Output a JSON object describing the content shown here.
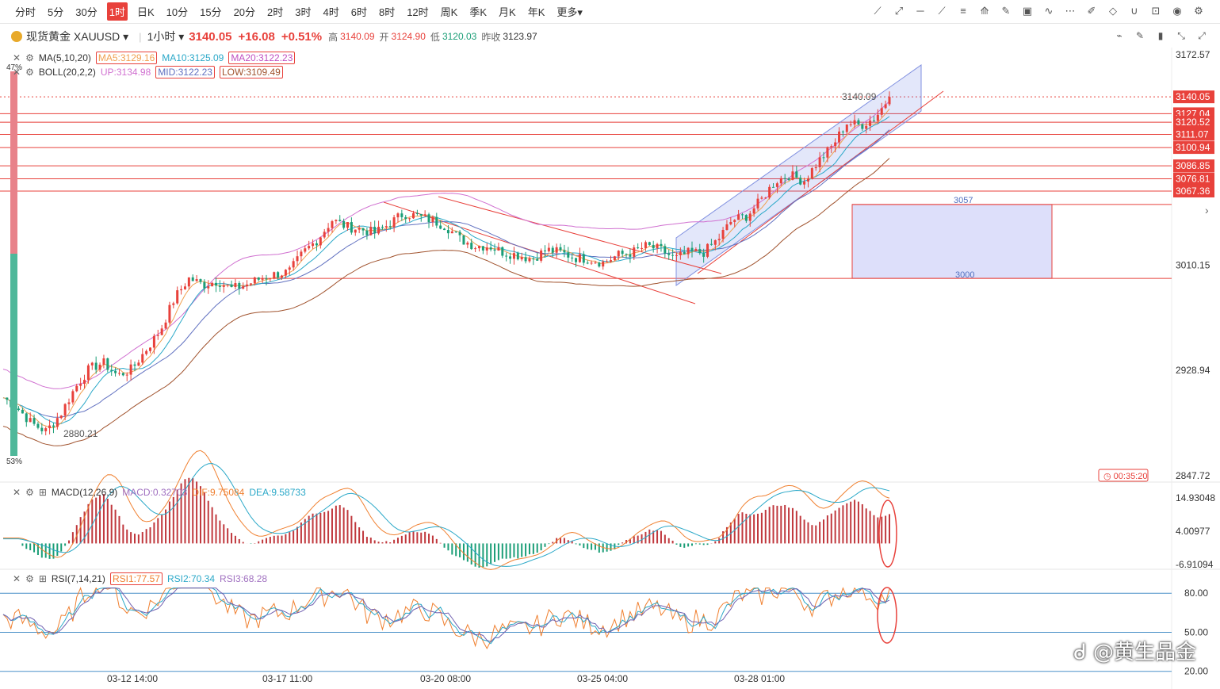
{
  "timeframes": [
    "分时",
    "5分",
    "30分",
    "1时",
    "日K",
    "10分",
    "15分",
    "20分",
    "2时",
    "3时",
    "4时",
    "6时",
    "8时",
    "12时",
    "周K",
    "季K",
    "月K",
    "年K",
    "更多"
  ],
  "active_timeframe": "1时",
  "tools": [
    "trend-line-icon",
    "ray-icon",
    "horizontal-line-icon",
    "segment-icon",
    "fib-icon",
    "fan-icon",
    "brush-icon",
    "image-icon",
    "wave-icon",
    "more-dots-icon",
    "note-icon",
    "eraser-icon",
    "magnet-icon",
    "lock-icon",
    "eye-icon",
    "gear-icon"
  ],
  "right_tools": [
    "chart-type-icon",
    "draw-icon",
    "candle-icon",
    "fullscreen-icon",
    "expand-icon"
  ],
  "header": {
    "name": "现货黄金",
    "symbol": "XAUUSD",
    "interval": "1小时",
    "price": "3140.05",
    "change": "+16.08",
    "change_pct": "+0.51%",
    "high_label": "高",
    "high": "3140.09",
    "open_label": "开",
    "open": "3124.90",
    "low_label": "低",
    "low": "3120.03",
    "prev_label": "昨收",
    "prev": "3123.97"
  },
  "indicators": {
    "ma": {
      "name": "MA(5,10,20)",
      "ma5": "MA5:3129.16",
      "ma10": "MA10:3125.09",
      "ma20": "MA20:3122.23"
    },
    "boll": {
      "name": "BOLL(20,2,2)",
      "up": "UP:3134.98",
      "mid": "MID:3122.23",
      "low": "LOW:3109.49"
    },
    "macd": {
      "name": "MACD(12,26,9)",
      "macd": "MACD:0.32703",
      "dif": "DIF:9.75084",
      "dea": "DEA:9.58733"
    },
    "rsi": {
      "name": "RSI(7,14,21)",
      "rsi1": "RSI1:77.57",
      "rsi2": "RSI2:70.34",
      "rsi3": "RSI3:68.28"
    }
  },
  "left_gauge": {
    "top_pct": "47%",
    "bottom_pct": "53%"
  },
  "annotations": {
    "high_mark": "3140.09",
    "low_mark": "2880.21",
    "box_top": "3057",
    "box_bottom": "3000",
    "countdown": "00:35:20"
  },
  "colors": {
    "up": "#e8413b",
    "down": "#1b9e77",
    "ma5": "#f0a050",
    "ma10": "#2aa8c8",
    "ma20": "#c050c0",
    "boll_up": "#d070d0",
    "boll_low": "#a0522d"
  },
  "chart_data": [
    {
      "type": "line",
      "name": "price",
      "ylim": [
        2847.72,
        3172.57
      ],
      "y_ticks": [
        3172.57,
        3010.15,
        2928.94,
        2847.72
      ],
      "x_tick_labels": [
        "03-12 14:00",
        "03-17 11:00",
        "03-20 08:00",
        "03-25 04:00",
        "03-28 01:00"
      ],
      "horizontal_levels": [
        "3140.05",
        "3127.04",
        "3120.52",
        "3111.07",
        "3100.94",
        "3086.85",
        "3076.81",
        "3067.36"
      ],
      "close_approx": [
        2908,
        2900,
        2888,
        2882,
        2895,
        2915,
        2930,
        2935,
        2925,
        2930,
        2945,
        2960,
        2985,
        3000,
        2995,
        2998,
        2992,
        2995,
        3000,
        3003,
        3005,
        3020,
        3030,
        3045,
        3040,
        3038,
        3035,
        3042,
        3050,
        3048,
        3045,
        3040,
        3030,
        3025,
        3025,
        3020,
        3018,
        3015,
        3022,
        3020,
        3016,
        3015,
        3012,
        3018,
        3020,
        3025,
        3022,
        3015,
        3020,
        3020,
        3030,
        3045,
        3048,
        3060,
        3075,
        3080,
        3075,
        3090,
        3102,
        3120,
        3118,
        3124,
        3140
      ]
    },
    {
      "type": "bar",
      "name": "MACD",
      "y_ticks": [
        14.93048,
        4.00977,
        -6.91094
      ]
    },
    {
      "type": "line",
      "name": "RSI",
      "y_ticks": [
        80.0,
        50.0,
        20.0
      ],
      "y_tick_labels": [
        "80.00",
        "50.00",
        "20.00"
      ]
    }
  ]
}
